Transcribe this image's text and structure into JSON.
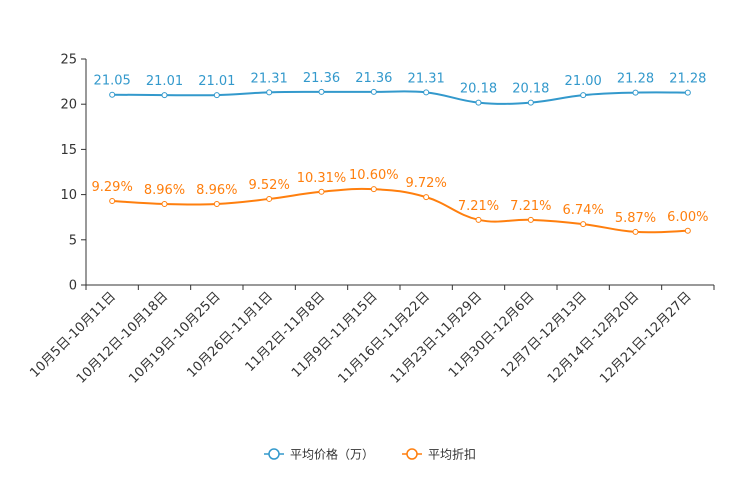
{
  "chart_data": {
    "type": "line",
    "title": "",
    "xlabel": "",
    "ylabel": "",
    "ylim": [
      0,
      25
    ],
    "yticks": [
      "0",
      "5",
      "10",
      "15",
      "20",
      "25"
    ],
    "grid": false,
    "legend_position": "bottom-center",
    "categories": [
      "10月5日-10月11日",
      "10月12日-10月18日",
      "10月19日-10月25日",
      "10月26日-11月1日",
      "11月2日-11月8日",
      "11月9日-11月15日",
      "11月16日-11月22日",
      "11月23日-11月29日",
      "11月30日-12月6日",
      "12月7日-12月13日",
      "12月14日-12月20日",
      "12月21日-12月27日"
    ],
    "series": [
      {
        "name": "平均价格（万）",
        "color": "#3399cc",
        "values": [
          21.05,
          21.01,
          21.01,
          21.31,
          21.36,
          21.36,
          21.31,
          20.18,
          20.18,
          21.0,
          21.28,
          21.28
        ],
        "labels": [
          "21.05",
          "21.01",
          "21.01",
          "21.31",
          "21.36",
          "21.36",
          "21.31",
          "20.18",
          "20.18",
          "21.00",
          "21.28",
          "21.28"
        ]
      },
      {
        "name": "平均折扣",
        "color": "#ff7f0e",
        "values": [
          9.29,
          8.96,
          8.96,
          9.52,
          10.31,
          10.6,
          9.72,
          7.21,
          7.21,
          6.74,
          5.87,
          6.0
        ],
        "labels": [
          "9.29%",
          "8.96%",
          "8.96%",
          "9.52%",
          "10.31%",
          "10.60%",
          "9.72%",
          "7.21%",
          "7.21%",
          "6.74%",
          "5.87%",
          "6.00%"
        ]
      }
    ]
  }
}
